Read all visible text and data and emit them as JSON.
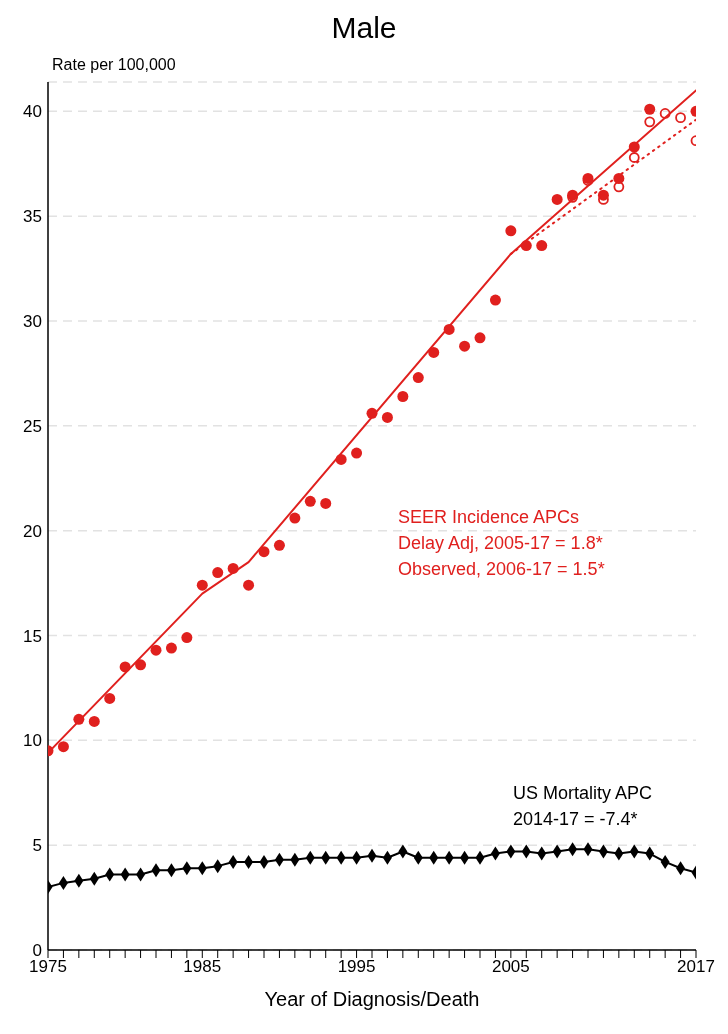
{
  "chart_data": {
    "type": "scatter",
    "title": "Male",
    "xlabel": "Year of Diagnosis/Death",
    "ylabel": "Rate per 100,000",
    "x": [
      1975,
      1976,
      1977,
      1978,
      1979,
      1980,
      1981,
      1982,
      1983,
      1984,
      1985,
      1986,
      1987,
      1988,
      1989,
      1990,
      1991,
      1992,
      1993,
      1994,
      1995,
      1996,
      1997,
      1998,
      1999,
      2000,
      2001,
      2002,
      2003,
      2004,
      2005,
      2006,
      2007,
      2008,
      2009,
      2010,
      2011,
      2012,
      2013,
      2014,
      2015,
      2016,
      2017
    ],
    "series": [
      {
        "marker": "circle",
        "color": "#e0201e",
        "values": [
          9.5,
          9.7,
          11.0,
          10.9,
          12.0,
          13.5,
          13.6,
          14.3,
          14.4,
          14.9,
          17.4,
          18.0,
          18.2,
          17.4,
          19.0,
          19.3,
          20.6,
          21.4,
          21.3,
          23.4,
          23.7,
          25.6,
          25.4,
          26.4,
          27.3,
          28.5,
          29.6,
          28.8,
          29.2,
          31.0,
          34.3,
          33.6,
          33.6,
          35.8,
          36.0,
          36.8,
          36.0,
          36.8,
          38.3,
          40.1,
          null,
          null,
          40.0
        ]
      },
      {
        "marker": "circle",
        "color": "#e0201e",
        "values": [
          null,
          null,
          null,
          null,
          null,
          null,
          null,
          null,
          null,
          null,
          null,
          null,
          null,
          null,
          null,
          null,
          null,
          null,
          null,
          null,
          null,
          null,
          null,
          null,
          null,
          null,
          null,
          null,
          null,
          null,
          null,
          null,
          null,
          null,
          35.9,
          36.7,
          35.8,
          36.4,
          37.8,
          39.5,
          39.9,
          39.7,
          38.6
        ]
      },
      {
        "type": "line",
        "marker": "none",
        "line_style": "solid",
        "color": "#e0201e",
        "x": [
          1975,
          1985,
          1988,
          2005,
          2017
        ],
        "values": [
          9.4,
          17.0,
          18.5,
          33.2,
          41.0
        ]
      },
      {
        "type": "line",
        "marker": "none",
        "line_style": "dotted",
        "color": "#e0201e",
        "x": [
          2005,
          2017
        ],
        "values": [
          33.2,
          39.6
        ]
      },
      {
        "type": "line",
        "marker": "diamond",
        "line_style": "solid",
        "color": "#000000",
        "values": [
          3.0,
          3.2,
          3.3,
          3.4,
          3.6,
          3.6,
          3.6,
          3.8,
          3.8,
          3.9,
          3.9,
          4.0,
          4.2,
          4.2,
          4.2,
          4.3,
          4.3,
          4.4,
          4.4,
          4.4,
          4.4,
          4.5,
          4.4,
          4.7,
          4.4,
          4.4,
          4.4,
          4.4,
          4.4,
          4.6,
          4.7,
          4.7,
          4.6,
          4.7,
          4.8,
          4.8,
          4.7,
          4.6,
          4.7,
          4.6,
          4.2,
          3.9,
          3.7
        ]
      }
    ],
    "xlim": [
      1975,
      2017
    ],
    "xticks": [
      1975,
      {
        "value": 1976,
        "label": null
      },
      {
        "value": 1977,
        "label": null
      },
      {
        "value": 1978,
        "label": null
      },
      {
        "value": 1979,
        "label": null
      },
      {
        "value": 1980,
        "label": null
      },
      {
        "value": 1981,
        "label": null
      },
      {
        "value": 1982,
        "label": null
      },
      {
        "value": 1983,
        "label": null
      },
      {
        "value": 1984,
        "label": null
      },
      1985,
      {
        "value": 1986,
        "label": null
      },
      {
        "value": 1987,
        "label": null
      },
      {
        "value": 1988,
        "label": null
      },
      {
        "value": 1989,
        "label": null
      },
      {
        "value": 1990,
        "label": null
      },
      {
        "value": 1991,
        "label": null
      },
      {
        "value": 1992,
        "label": null
      },
      {
        "value": 1993,
        "label": null
      },
      {
        "value": 1994,
        "label": null
      },
      1995,
      {
        "value": 1996,
        "label": null
      },
      {
        "value": 1997,
        "label": null
      },
      {
        "value": 1998,
        "label": null
      },
      {
        "value": 1999,
        "label": null
      },
      {
        "value": 2000,
        "label": null
      },
      {
        "value": 2001,
        "label": null
      },
      {
        "value": 2002,
        "label": null
      },
      {
        "value": 2003,
        "label": null
      },
      {
        "value": 2004,
        "label": null
      },
      2005,
      {
        "value": 2006,
        "label": null
      },
      {
        "value": 2007,
        "label": null
      },
      {
        "value": 2008,
        "label": null
      },
      {
        "value": 2009,
        "label": null
      },
      {
        "value": 2010,
        "label": null
      },
      {
        "value": 2011,
        "label": null
      },
      {
        "value": 2012,
        "label": null
      },
      {
        "value": 2013,
        "label": null
      },
      {
        "value": 2014,
        "label": null
      },
      {
        "value": 2015,
        "label": null
      },
      {
        "value": 2016,
        "label": null
      },
      2017
    ],
    "ylim": [
      0,
      41.4
    ],
    "yticks": [
      0,
      5,
      10,
      15,
      20,
      25,
      30,
      35,
      40
    ],
    "grid": "y",
    "legend": false,
    "annotations": [
      "SEER Incidence APCs",
      "Delay Adj, 2005-17 = 1.8*",
      "Observed, 2006-17 = 1.5*",
      "US Mortality APC",
      "2014-17 = -7.4*"
    ]
  }
}
